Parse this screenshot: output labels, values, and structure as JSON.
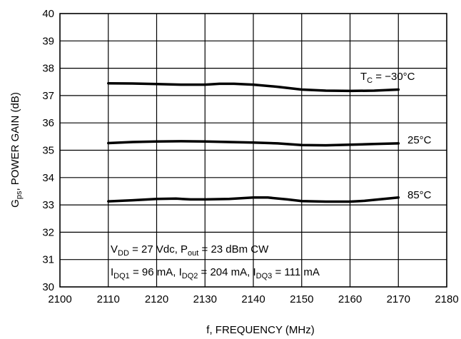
{
  "chart_data": {
    "type": "line",
    "xlabel": "f, FREQUENCY (MHz)",
    "ylabel_parts": {
      "main": "G",
      "sub": "ps",
      "rest": ",   POWER GAIN (dB)"
    },
    "xlim": [
      2100,
      2180
    ],
    "ylim": [
      30,
      40
    ],
    "xticks": [
      2100,
      2110,
      2120,
      2130,
      2140,
      2150,
      2160,
      2170,
      2180
    ],
    "yticks": [
      30,
      31,
      32,
      33,
      34,
      35,
      36,
      37,
      38,
      39,
      40
    ],
    "grid": true,
    "series": [
      {
        "label_parts": {
          "pre": "T",
          "sub": "C",
          "post": " = −30°C"
        },
        "x": [
          2110,
          2115,
          2120,
          2125,
          2130,
          2133,
          2136,
          2140,
          2145,
          2150,
          2155,
          2160,
          2165,
          2170
        ],
        "y": [
          37.45,
          37.44,
          37.42,
          37.4,
          37.4,
          37.43,
          37.43,
          37.4,
          37.32,
          37.22,
          37.18,
          37.17,
          37.18,
          37.22
        ]
      },
      {
        "label_parts": {
          "pre": "25°C",
          "sub": "",
          "post": ""
        },
        "x": [
          2110,
          2115,
          2120,
          2125,
          2130,
          2135,
          2140,
          2145,
          2150,
          2155,
          2160,
          2165,
          2170
        ],
        "y": [
          35.26,
          35.3,
          35.32,
          35.33,
          35.32,
          35.3,
          35.28,
          35.25,
          35.19,
          35.18,
          35.2,
          35.23,
          35.25
        ]
      },
      {
        "label_parts": {
          "pre": "85°C",
          "sub": "",
          "post": ""
        },
        "x": [
          2110,
          2115,
          2120,
          2124,
          2127,
          2130,
          2135,
          2140,
          2143,
          2147,
          2150,
          2155,
          2160,
          2163,
          2166,
          2170
        ],
        "y": [
          33.13,
          33.17,
          33.22,
          33.23,
          33.2,
          33.2,
          33.22,
          33.27,
          33.27,
          33.2,
          33.14,
          33.12,
          33.12,
          33.15,
          33.2,
          33.27
        ]
      }
    ],
    "annotations": {
      "line1": [
        {
          "t": "V"
        },
        {
          "t": "DD",
          "sub": true
        },
        {
          "t": " = 27 Vdc, P"
        },
        {
          "t": "out",
          "sub": true
        },
        {
          "t": " = 23 dBm CW"
        }
      ],
      "line2": [
        {
          "t": "I"
        },
        {
          "t": "DQ1",
          "sub": true
        },
        {
          "t": " = 96 mA, I"
        },
        {
          "t": "DQ2",
          "sub": true
        },
        {
          "t": " = 204 mA, I"
        },
        {
          "t": "DQ3",
          "sub": true
        },
        {
          "t": " = 111 mA"
        }
      ]
    }
  }
}
